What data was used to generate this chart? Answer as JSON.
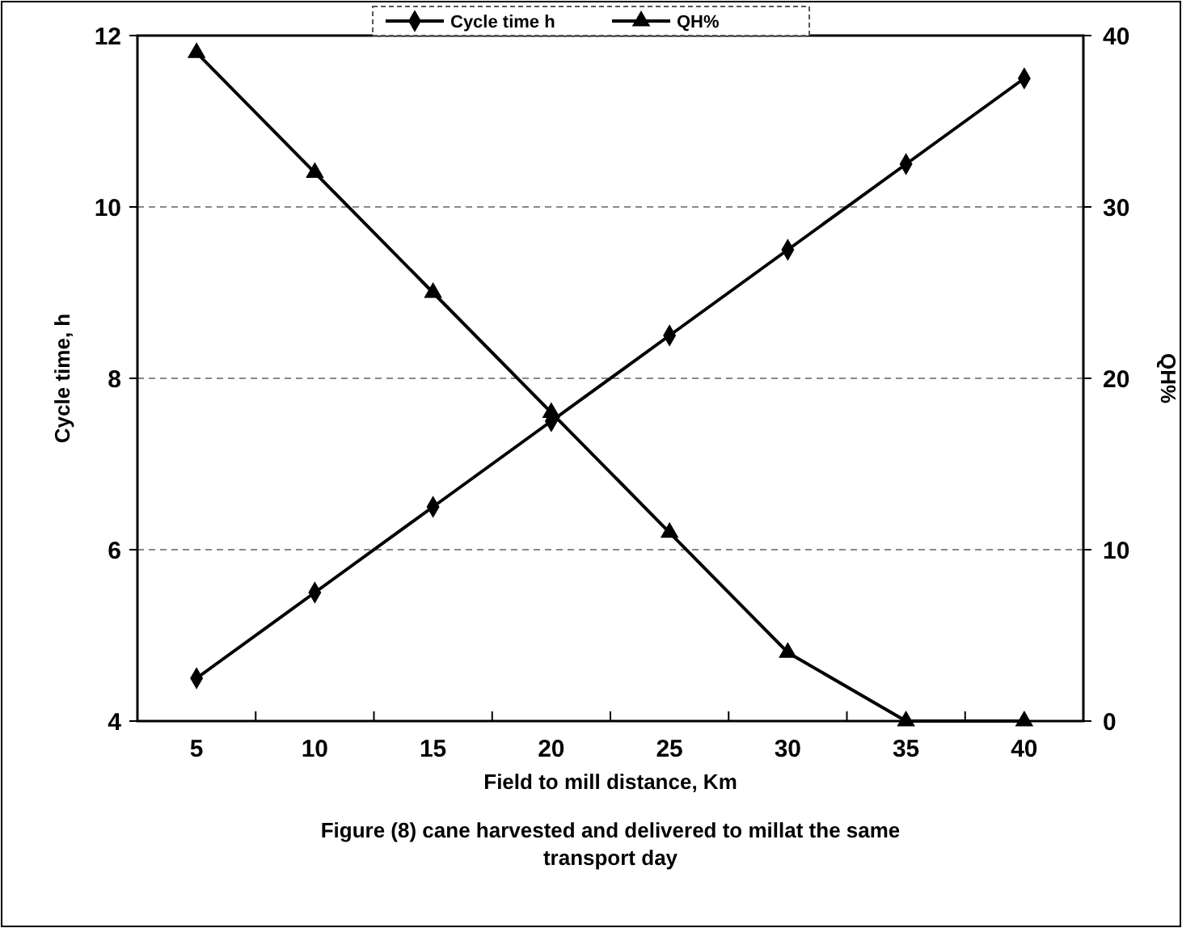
{
  "chart_data": {
    "type": "line",
    "categories": [
      "5",
      "10",
      "15",
      "20",
      "25",
      "30",
      "35",
      "40"
    ],
    "series": [
      {
        "name": "Cycle time h",
        "color": "#000000",
        "marker": "diamond",
        "values": [
          4.5,
          5.5,
          6.5,
          7.5,
          8.5,
          9.5,
          10.5,
          11.5
        ]
      },
      {
        "name": "QH%",
        "color": "#000000",
        "marker": "triangle",
        "axis": "y2",
        "values": [
          39,
          32,
          25,
          18,
          11,
          4,
          0,
          0
        ]
      }
    ],
    "xlabel": "Field to mill distance, Km",
    "ylabel": "Cycle time, h",
    "y2label": "QH%",
    "ylim": [
      4,
      12
    ],
    "yticks": [
      4,
      6,
      8,
      10,
      12
    ],
    "y2lim": [
      0,
      40
    ],
    "y2ticks": [
      0,
      10,
      20,
      30,
      40
    ],
    "grid": "y",
    "legend": "top",
    "line_style": "solid",
    "annotations": [
      "Figure (8) cane harvested and delivered to millat the same transport day"
    ]
  }
}
